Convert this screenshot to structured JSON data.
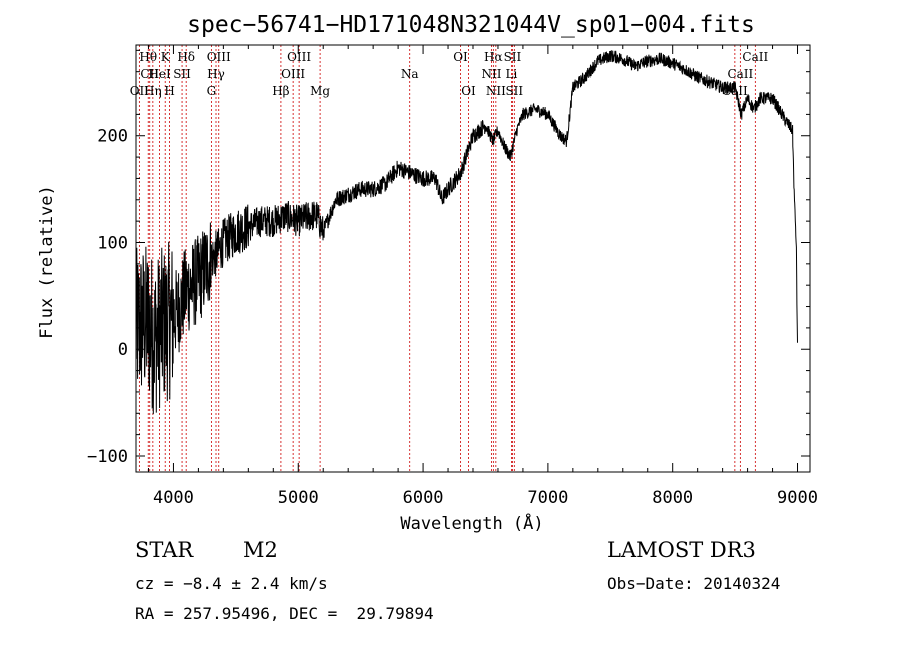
{
  "chart_data": {
    "type": "line",
    "title": "spec−56741−HD171048N321044V_sp01−004.fits",
    "xlabel": "Wavelength (Å)",
    "ylabel": "Flux (relative)",
    "xlim": [
      3700,
      9100
    ],
    "ylim": [
      -115,
      285
    ],
    "xticks": [
      4000,
      5000,
      6000,
      7000,
      8000,
      9000
    ],
    "yticks": [
      -100,
      0,
      100,
      200
    ],
    "line_color": "#000000",
    "marker_color": "#cc0000",
    "spectrum_anchors": [
      [
        3700,
        20
      ],
      [
        3750,
        25
      ],
      [
        3800,
        25
      ],
      [
        3850,
        10
      ],
      [
        3900,
        20
      ],
      [
        3950,
        25
      ],
      [
        4000,
        30
      ],
      [
        4050,
        40
      ],
      [
        4100,
        55
      ],
      [
        4150,
        60
      ],
      [
        4200,
        65
      ],
      [
        4250,
        75
      ],
      [
        4300,
        85
      ],
      [
        4350,
        90
      ],
      [
        4400,
        100
      ],
      [
        4500,
        110
      ],
      [
        4600,
        115
      ],
      [
        4700,
        120
      ],
      [
        4800,
        120
      ],
      [
        4900,
        125
      ],
      [
        5000,
        120
      ],
      [
        5100,
        125
      ],
      [
        5150,
        125
      ],
      [
        5200,
        110
      ],
      [
        5300,
        140
      ],
      [
        5400,
        145
      ],
      [
        5500,
        150
      ],
      [
        5600,
        150
      ],
      [
        5700,
        155
      ],
      [
        5800,
        170
      ],
      [
        5900,
        165
      ],
      [
        6000,
        160
      ],
      [
        6100,
        160
      ],
      [
        6150,
        140
      ],
      [
        6200,
        150
      ],
      [
        6300,
        165
      ],
      [
        6400,
        200
      ],
      [
        6500,
        210
      ],
      [
        6560,
        195
      ],
      [
        6600,
        205
      ],
      [
        6650,
        190
      ],
      [
        6700,
        180
      ],
      [
        6750,
        205
      ],
      [
        6800,
        220
      ],
      [
        6900,
        225
      ],
      [
        7000,
        220
      ],
      [
        7100,
        200
      ],
      [
        7150,
        195
      ],
      [
        7200,
        245
      ],
      [
        7300,
        255
      ],
      [
        7400,
        270
      ],
      [
        7500,
        275
      ],
      [
        7600,
        272
      ],
      [
        7700,
        265
      ],
      [
        7800,
        270
      ],
      [
        7900,
        272
      ],
      [
        8000,
        268
      ],
      [
        8100,
        262
      ],
      [
        8200,
        255
      ],
      [
        8300,
        250
      ],
      [
        8400,
        245
      ],
      [
        8500,
        245
      ],
      [
        8550,
        220
      ],
      [
        8600,
        235
      ],
      [
        8650,
        225
      ],
      [
        8700,
        235
      ],
      [
        8800,
        235
      ],
      [
        8900,
        215
      ],
      [
        8960,
        205
      ],
      [
        8975,
        140
      ],
      [
        8990,
        100
      ],
      [
        9000,
        0
      ]
    ],
    "spectral_lines": [
      {
        "name": "Hθ",
        "wavelength": 3798,
        "row": 1
      },
      {
        "name": "CII",
        "wavelength": 3810,
        "row": 2
      },
      {
        "name": "OII",
        "wavelength": 3727,
        "row": 3
      },
      {
        "name": "HeI",
        "wavelength": 3889,
        "row": 2
      },
      {
        "name": "Hη",
        "wavelength": 3835,
        "row": 3
      },
      {
        "name": "K",
        "wavelength": 3934,
        "row": 1
      },
      {
        "name": "H",
        "wavelength": 3969,
        "row": 3
      },
      {
        "name": "SII",
        "wavelength": 4069,
        "row": 2
      },
      {
        "name": "Hδ",
        "wavelength": 4102,
        "row": 1
      },
      {
        "name": "OIII",
        "wavelength": 4363,
        "row": 1
      },
      {
        "name": "Hγ",
        "wavelength": 4341,
        "row": 2
      },
      {
        "name": "G",
        "wavelength": 4304,
        "row": 3
      },
      {
        "name": "Hβ",
        "wavelength": 4861,
        "row": 3
      },
      {
        "name": "OIII",
        "wavelength": 5007,
        "row": 1
      },
      {
        "name": "OIII",
        "wavelength": 4959,
        "row": 2
      },
      {
        "name": "Mg",
        "wavelength": 5175,
        "row": 3
      },
      {
        "name": "Na",
        "wavelength": 5893,
        "row": 2
      },
      {
        "name": "OI",
        "wavelength": 6300,
        "row": 1
      },
      {
        "name": "OI",
        "wavelength": 6364,
        "row": 3
      },
      {
        "name": "Hα",
        "wavelength": 6563,
        "row": 1
      },
      {
        "name": "NII",
        "wavelength": 6548,
        "row": 2
      },
      {
        "name": "NII",
        "wavelength": 6583,
        "row": 3
      },
      {
        "name": "SII",
        "wavelength": 6716,
        "row": 1
      },
      {
        "name": "Li",
        "wavelength": 6708,
        "row": 2
      },
      {
        "name": "SII",
        "wavelength": 6731,
        "row": 3
      },
      {
        "name": "CaII",
        "wavelength": 8662,
        "row": 1
      },
      {
        "name": "CaII",
        "wavelength": 8542,
        "row": 2
      },
      {
        "name": "CaII",
        "wavelength": 8498,
        "row": 3
      }
    ]
  },
  "info": {
    "class": "STAR",
    "subclass": "M2",
    "survey": "LAMOST DR3",
    "cz": "cz = −8.4 ± 2.4 km/s",
    "obs_date": "Obs−Date: 20140324",
    "coords": "RA = 257.95496, DEC =  29.79894"
  }
}
